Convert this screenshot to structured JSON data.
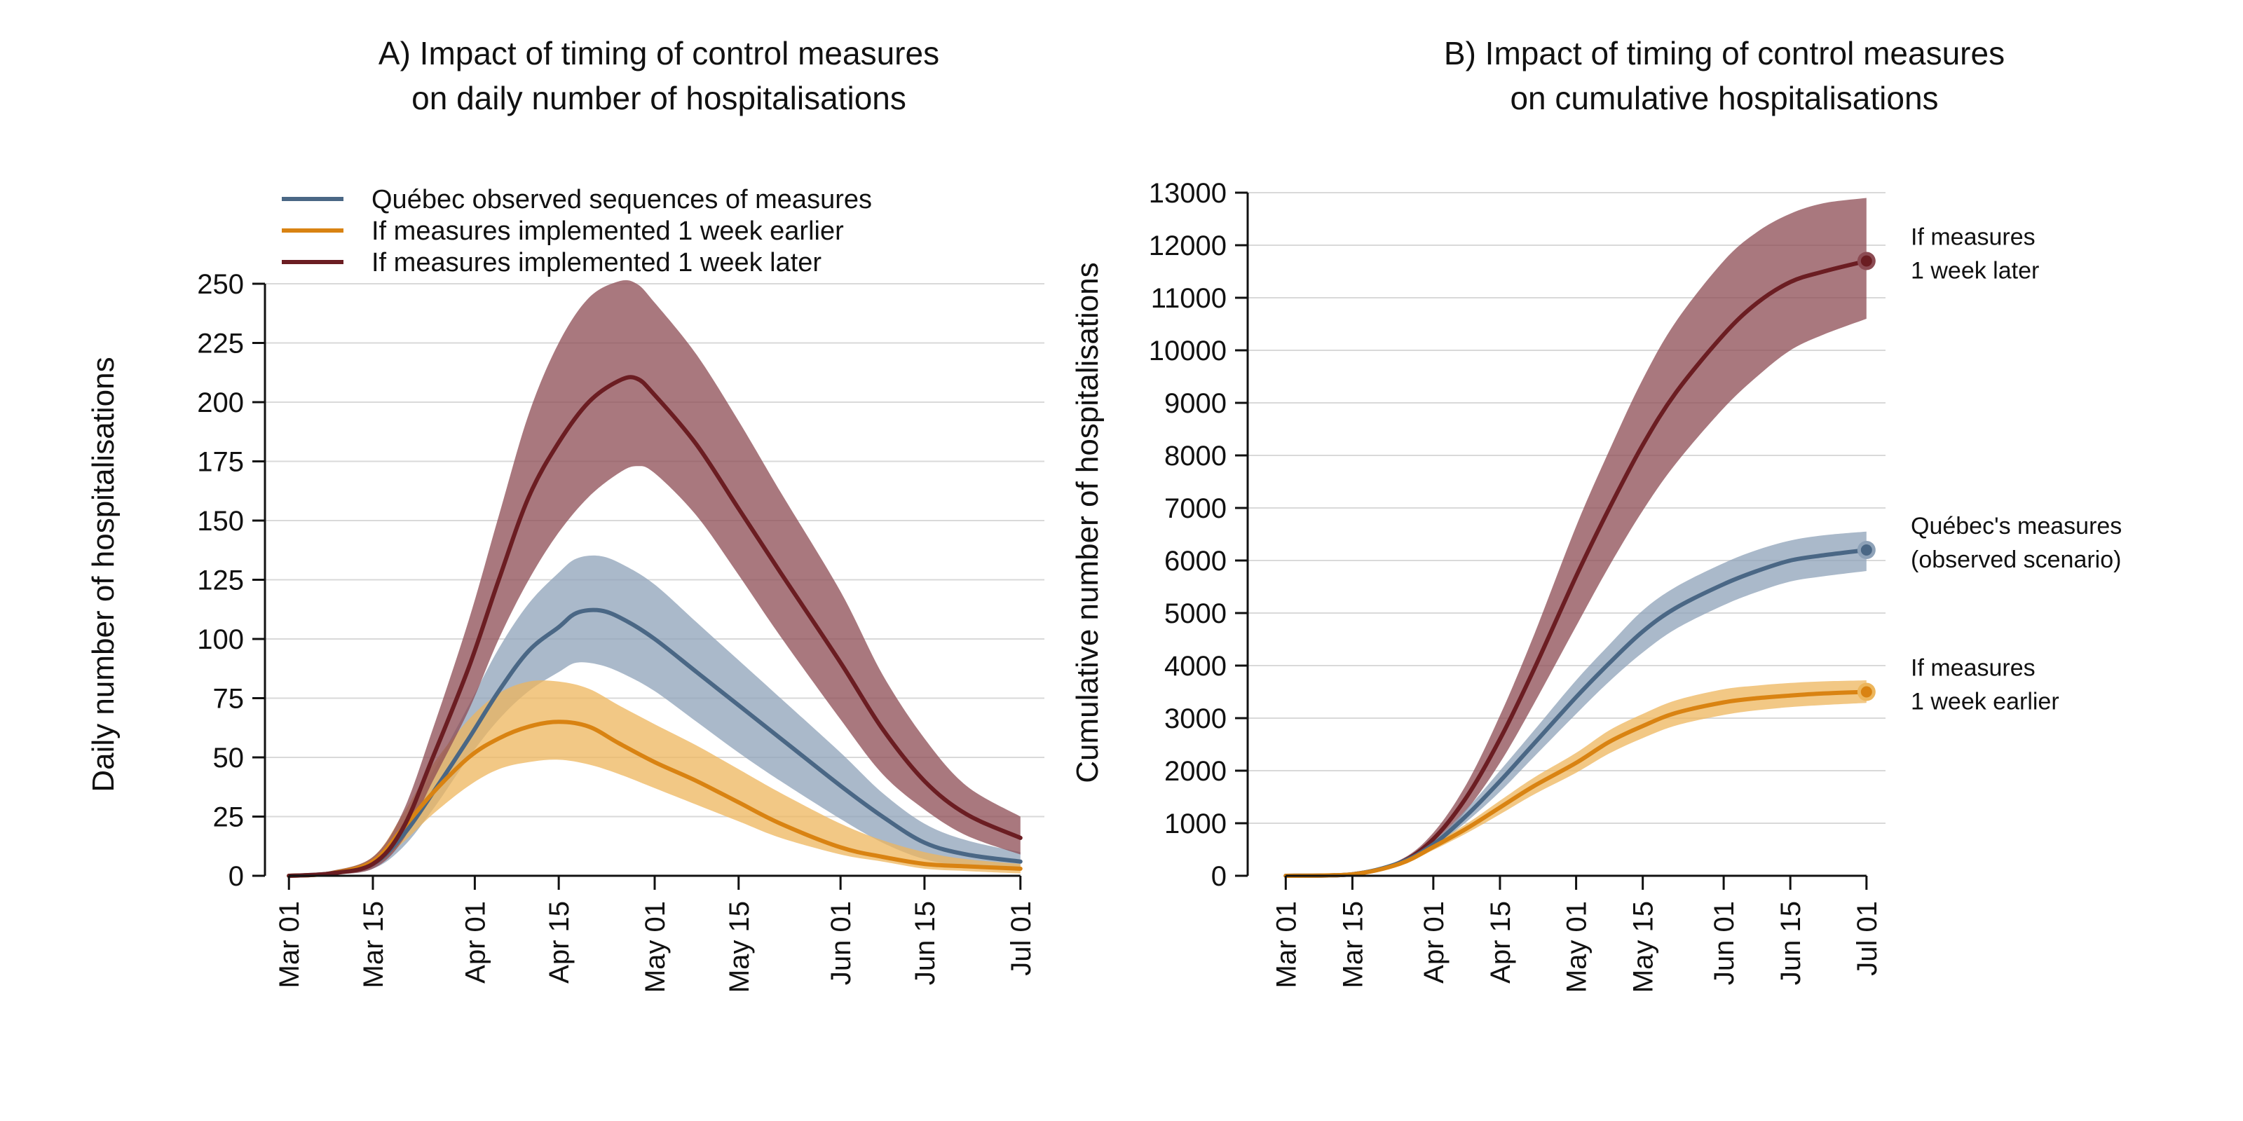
{
  "colors": {
    "observed": "#4a6785",
    "earlier": "#d98312",
    "later": "#6b1d22",
    "observed_band": "#8ea2b8",
    "earlier_band": "#edb65c",
    "later_band": "#8c4b53"
  },
  "legend": [
    {
      "key": "observed",
      "label": "Québec observed sequences of measures"
    },
    {
      "key": "earlier",
      "label": "If measures implemented 1 week earlier"
    },
    {
      "key": "later",
      "label": "If measures implemented 1 week later"
    }
  ],
  "chart_data": [
    {
      "type": "line",
      "title": [
        "A) Impact of timing of control measures",
        "on daily number of hospitalisations"
      ],
      "xlabel": "",
      "ylabel": "Daily number of hospitalisations",
      "xlim": [
        "2020-02-26",
        "2020-07-05"
      ],
      "ylim": [
        0,
        250
      ],
      "yticks": [
        0,
        25,
        50,
        75,
        100,
        125,
        150,
        175,
        200,
        225,
        250
      ],
      "xticks": [
        "2020-03-01",
        "2020-03-15",
        "2020-04-01",
        "2020-04-15",
        "2020-05-01",
        "2020-05-15",
        "2020-06-01",
        "2020-06-15",
        "2020-07-01"
      ],
      "xtick_labels": [
        "Mar 01",
        "Mar 15",
        "Apr 01",
        "Apr 15",
        "May 01",
        "May 15",
        "Jun 01",
        "Jun 15",
        "Jul 01"
      ],
      "grid": true,
      "legend_position": "top-left",
      "series": [
        {
          "key": "observed",
          "name": "Québec observed sequences of measures",
          "x": [
            "2020-03-01",
            "2020-03-08",
            "2020-03-15",
            "2020-03-20",
            "2020-03-25",
            "2020-03-31",
            "2020-04-05",
            "2020-04-10",
            "2020-04-15",
            "2020-04-18",
            "2020-04-22",
            "2020-04-26",
            "2020-05-01",
            "2020-05-08",
            "2020-05-15",
            "2020-05-22",
            "2020-06-01",
            "2020-06-08",
            "2020-06-15",
            "2020-06-22",
            "2020-07-01"
          ],
          "y": [
            0,
            1,
            5,
            17,
            35,
            58,
            78,
            95,
            105,
            111,
            112,
            108,
            100,
            86,
            72,
            58,
            38,
            25,
            14,
            9,
            6
          ],
          "lower": [
            0,
            0.5,
            3,
            12,
            28,
            50,
            66,
            78,
            86,
            90,
            89,
            85,
            78,
            65,
            52,
            40,
            24,
            14,
            7,
            4,
            2
          ],
          "upper": [
            0,
            2,
            7,
            22,
            44,
            72,
            96,
            115,
            128,
            134,
            135,
            131,
            123,
            107,
            91,
            75,
            52,
            35,
            22,
            15,
            10
          ]
        },
        {
          "key": "earlier",
          "name": "If measures implemented 1 week earlier",
          "x": [
            "2020-03-01",
            "2020-03-08",
            "2020-03-15",
            "2020-03-20",
            "2020-03-25",
            "2020-03-31",
            "2020-04-05",
            "2020-04-10",
            "2020-04-15",
            "2020-04-20",
            "2020-04-25",
            "2020-05-01",
            "2020-05-08",
            "2020-05-15",
            "2020-05-22",
            "2020-06-01",
            "2020-06-08",
            "2020-06-15",
            "2020-06-22",
            "2020-07-01"
          ],
          "y": [
            0,
            1,
            6,
            20,
            35,
            50,
            58,
            63,
            65,
            63,
            56,
            48,
            40,
            31,
            22,
            12,
            8,
            5,
            4,
            3
          ],
          "lower": [
            0,
            0.5,
            4,
            14,
            26,
            38,
            45,
            48,
            49,
            47,
            43,
            37,
            30,
            23,
            16,
            9,
            6,
            3,
            2,
            1
          ],
          "upper": [
            0,
            2,
            8,
            26,
            47,
            66,
            77,
            82,
            82,
            79,
            72,
            64,
            55,
            45,
            35,
            22,
            15,
            10,
            7,
            5
          ]
        },
        {
          "key": "later",
          "name": "If measures implemented 1 week later",
          "x": [
            "2020-03-01",
            "2020-03-08",
            "2020-03-15",
            "2020-03-20",
            "2020-03-25",
            "2020-03-31",
            "2020-04-05",
            "2020-04-10",
            "2020-04-15",
            "2020-04-20",
            "2020-04-25",
            "2020-04-28",
            "2020-05-01",
            "2020-05-08",
            "2020-05-15",
            "2020-05-22",
            "2020-06-01",
            "2020-06-08",
            "2020-06-15",
            "2020-06-22",
            "2020-07-01"
          ],
          "y": [
            0,
            1,
            5,
            20,
            50,
            88,
            125,
            160,
            183,
            200,
            209,
            210,
            203,
            182,
            155,
            128,
            90,
            62,
            40,
            26,
            16
          ],
          "lower": [
            0,
            0.5,
            3,
            15,
            40,
            70,
            100,
            125,
            145,
            160,
            170,
            173,
            170,
            152,
            127,
            101,
            66,
            43,
            28,
            17,
            9
          ],
          "upper": [
            0,
            2,
            8,
            27,
            62,
            108,
            152,
            195,
            225,
            244,
            251,
            250,
            242,
            220,
            192,
            162,
            120,
            85,
            58,
            38,
            25
          ]
        }
      ]
    },
    {
      "type": "line",
      "title": [
        "B) Impact of timing of control measures",
        "on cumulative hospitalisations"
      ],
      "xlabel": "",
      "ylabel": "Cumulative number of hospitalisations",
      "xlim": [
        "2020-02-22",
        "2020-07-05"
      ],
      "ylim": [
        0,
        13000
      ],
      "yticks": [
        0,
        1000,
        2000,
        3000,
        4000,
        5000,
        6000,
        7000,
        8000,
        9000,
        10000,
        11000,
        12000,
        13000
      ],
      "xticks": [
        "2020-03-01",
        "2020-03-15",
        "2020-04-01",
        "2020-04-15",
        "2020-05-01",
        "2020-05-15",
        "2020-06-01",
        "2020-06-15",
        "2020-07-01"
      ],
      "xtick_labels": [
        "Mar 01",
        "Mar 15",
        "Apr 01",
        "Apr 15",
        "May 01",
        "May 15",
        "Jun 01",
        "Jun 15",
        "Jul 01"
      ],
      "grid": true,
      "series": [
        {
          "key": "later",
          "annotation": [
            "If measures",
            " 1 week later"
          ],
          "end_value": 11700,
          "x": [
            "2020-03-01",
            "2020-03-15",
            "2020-03-25",
            "2020-04-01",
            "2020-04-08",
            "2020-04-15",
            "2020-04-22",
            "2020-05-01",
            "2020-05-08",
            "2020-05-15",
            "2020-05-22",
            "2020-06-01",
            "2020-06-08",
            "2020-06-15",
            "2020-06-22",
            "2020-07-01"
          ],
          "y": [
            0,
            30,
            250,
            700,
            1500,
            2600,
            3900,
            5700,
            7000,
            8200,
            9200,
            10300,
            10900,
            11300,
            11500,
            11700
          ],
          "lower": [
            0,
            25,
            200,
            580,
            1250,
            2150,
            3250,
            4750,
            5900,
            6950,
            7850,
            8900,
            9500,
            10000,
            10300,
            10600
          ],
          "upper": [
            0,
            35,
            300,
            820,
            1750,
            3050,
            4550,
            6650,
            8100,
            9450,
            10550,
            11700,
            12250,
            12600,
            12800,
            12900
          ]
        },
        {
          "key": "observed",
          "annotation": [
            "Québec's measures",
            " (observed scenario)"
          ],
          "end_value": 6200,
          "x": [
            "2020-03-01",
            "2020-03-15",
            "2020-03-25",
            "2020-04-01",
            "2020-04-08",
            "2020-04-15",
            "2020-04-22",
            "2020-05-01",
            "2020-05-08",
            "2020-05-15",
            "2020-05-22",
            "2020-06-01",
            "2020-06-08",
            "2020-06-15",
            "2020-06-22",
            "2020-07-01"
          ],
          "y": [
            0,
            30,
            250,
            600,
            1150,
            1800,
            2500,
            3400,
            4050,
            4650,
            5100,
            5550,
            5800,
            6000,
            6100,
            6200
          ],
          "lower": [
            0,
            25,
            220,
            540,
            1030,
            1600,
            2250,
            3080,
            3700,
            4250,
            4700,
            5150,
            5400,
            5600,
            5700,
            5800
          ],
          "upper": [
            0,
            35,
            280,
            660,
            1270,
            2000,
            2750,
            3720,
            4400,
            5050,
            5500,
            5950,
            6200,
            6380,
            6480,
            6550
          ]
        },
        {
          "key": "earlier",
          "annotation": [
            "If measures",
            " 1 week earlier"
          ],
          "end_value": 3500,
          "x": [
            "2020-03-01",
            "2020-03-15",
            "2020-03-25",
            "2020-04-01",
            "2020-04-08",
            "2020-04-15",
            "2020-04-22",
            "2020-05-01",
            "2020-05-08",
            "2020-05-15",
            "2020-05-22",
            "2020-06-01",
            "2020-06-08",
            "2020-06-15",
            "2020-06-22",
            "2020-07-01"
          ],
          "y": [
            0,
            30,
            230,
            550,
            900,
            1300,
            1700,
            2150,
            2550,
            2850,
            3100,
            3300,
            3380,
            3430,
            3470,
            3500
          ],
          "lower": [
            0,
            25,
            200,
            490,
            810,
            1170,
            1540,
            1960,
            2330,
            2620,
            2860,
            3060,
            3150,
            3210,
            3250,
            3290
          ],
          "upper": [
            0,
            35,
            260,
            610,
            990,
            1430,
            1860,
            2340,
            2770,
            3080,
            3340,
            3550,
            3620,
            3670,
            3700,
            3720
          ]
        }
      ]
    }
  ]
}
